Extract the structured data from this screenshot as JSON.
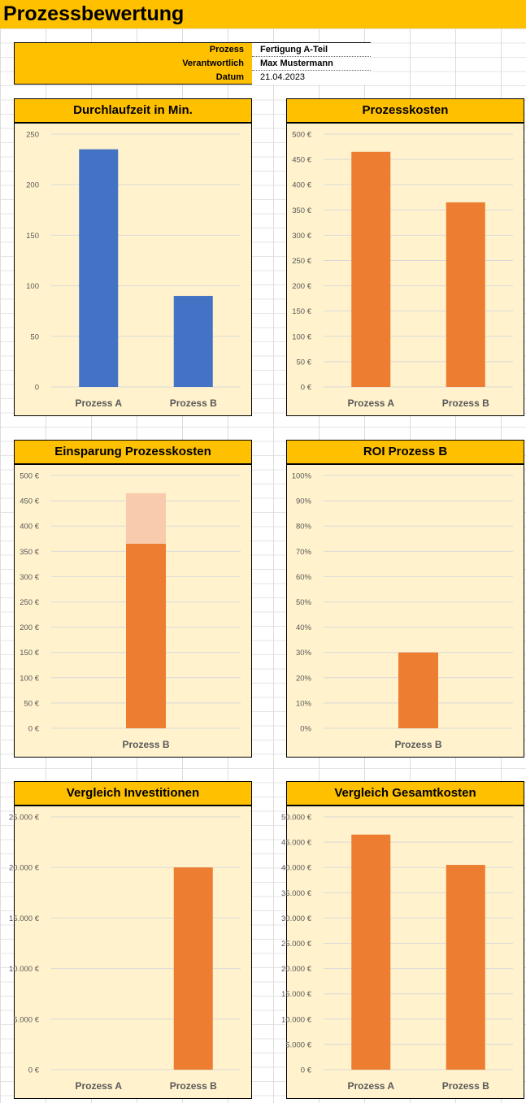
{
  "page": {
    "title": "Prozessbewertung"
  },
  "info": {
    "rows": [
      {
        "label": "Prozess",
        "value": "Fertigung A-Teil"
      },
      {
        "label": "Verantwortlich",
        "value": "Max Mustermann"
      },
      {
        "label": "Datum",
        "value": "21.04.2023"
      }
    ]
  },
  "colors": {
    "accent": "#FFC000",
    "panel_bg": "#FFF2CC",
    "blue": "#4472C4",
    "orange": "#ED7D31",
    "light_orange": "#F8CBAD"
  },
  "chart_data": [
    {
      "id": "durchlaufzeit",
      "type": "bar",
      "title": "Durchlaufzeit in Min.",
      "categories": [
        "Prozess A",
        "Prozess B"
      ],
      "values": [
        235,
        90
      ],
      "ylim": [
        0,
        250
      ],
      "yticks": [
        0,
        50,
        100,
        150,
        200,
        250
      ],
      "ytick_labels": [
        "0",
        "50",
        "100",
        "150",
        "200",
        "250"
      ],
      "color": "#4472C4",
      "grid": true,
      "legend": "none"
    },
    {
      "id": "prozesskosten",
      "type": "bar",
      "title": "Prozesskosten",
      "categories": [
        "Prozess A",
        "Prozess B"
      ],
      "values": [
        465,
        365
      ],
      "ylim": [
        0,
        500
      ],
      "yticks": [
        0,
        50,
        100,
        150,
        200,
        250,
        300,
        350,
        400,
        450,
        500
      ],
      "ytick_labels": [
        "0 €",
        "50 €",
        "100 €",
        "150 €",
        "200 €",
        "250 €",
        "300 €",
        "350 €",
        "400 €",
        "450 €",
        "500 €"
      ],
      "color": "#ED7D31",
      "grid": true,
      "legend": "none"
    },
    {
      "id": "einsparung",
      "type": "bar",
      "title": "Einsparung Prozesskosten",
      "categories": [
        "Prozess B"
      ],
      "series": [
        {
          "values": [
            365
          ],
          "color": "#ED7D31"
        },
        {
          "values": [
            100
          ],
          "color": "#F8CBAD"
        }
      ],
      "stacked": true,
      "ylim": [
        0,
        500
      ],
      "yticks": [
        0,
        50,
        100,
        150,
        200,
        250,
        300,
        350,
        400,
        450,
        500
      ],
      "ytick_labels": [
        "0 €",
        "50 €",
        "100 €",
        "150 €",
        "200 €",
        "250 €",
        "300 €",
        "350 €",
        "400 €",
        "450 €",
        "500 €"
      ],
      "grid": true,
      "legend": "none"
    },
    {
      "id": "roi",
      "type": "bar",
      "title": "ROI Prozess B",
      "categories": [
        "Prozess B"
      ],
      "values": [
        30
      ],
      "ylim": [
        0,
        100
      ],
      "yticks": [
        0,
        10,
        20,
        30,
        40,
        50,
        60,
        70,
        80,
        90,
        100
      ],
      "ytick_labels": [
        "0%",
        "10%",
        "20%",
        "30%",
        "40%",
        "50%",
        "60%",
        "70%",
        "80%",
        "90%",
        "100%"
      ],
      "color": "#ED7D31",
      "grid": true,
      "legend": "none"
    },
    {
      "id": "investitionen",
      "type": "bar",
      "title": "Vergleich Investitionen",
      "categories": [
        "Prozess A",
        "Prozess B"
      ],
      "values": [
        0,
        20000
      ],
      "ylim": [
        0,
        25000
      ],
      "yticks": [
        0,
        5000,
        10000,
        15000,
        20000,
        25000
      ],
      "ytick_labels": [
        "0 €",
        "5.000 €",
        "10.000 €",
        "15.000 €",
        "20.000 €",
        "25.000 €"
      ],
      "color": "#ED7D31",
      "grid": true,
      "legend": "none"
    },
    {
      "id": "gesamtkosten",
      "type": "bar",
      "title": "Vergleich Gesamtkosten",
      "categories": [
        "Prozess A",
        "Prozess B"
      ],
      "values": [
        46500,
        40500
      ],
      "ylim": [
        0,
        50000
      ],
      "yticks": [
        0,
        5000,
        10000,
        15000,
        20000,
        25000,
        30000,
        35000,
        40000,
        45000,
        50000
      ],
      "ytick_labels": [
        "0 €",
        "5.000 €",
        "10.000 €",
        "15.000 €",
        "20.000 €",
        "25.000 €",
        "30.000 €",
        "35.000 €",
        "40.000 €",
        "45.000 €",
        "50.000 €"
      ],
      "color": "#ED7D31",
      "grid": true,
      "legend": "none"
    }
  ]
}
